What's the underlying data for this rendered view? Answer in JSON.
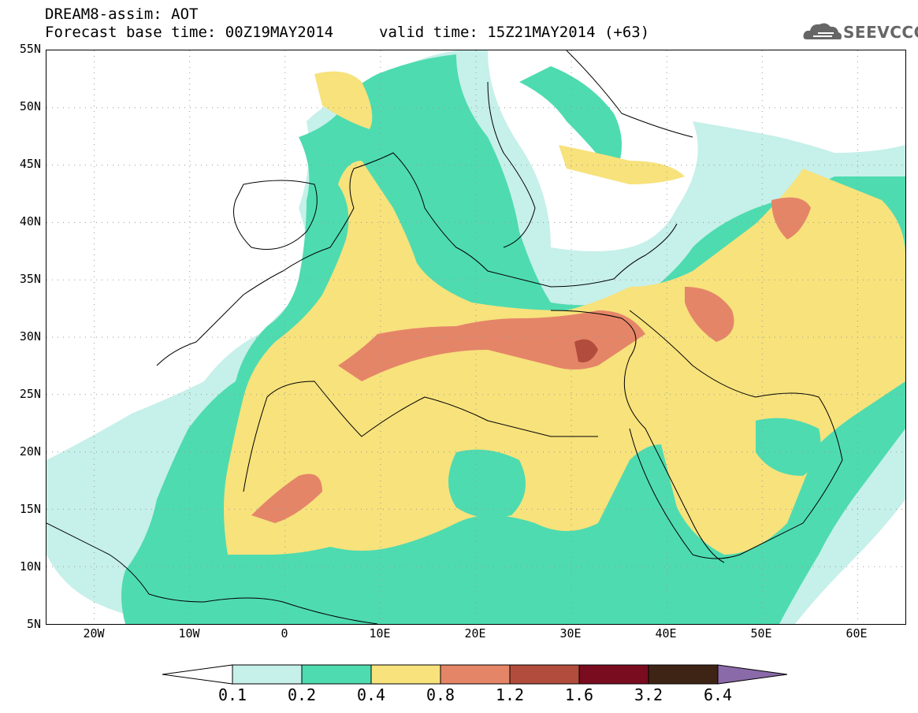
{
  "header": {
    "title_line1": "DREAM8-assim: AOT",
    "title_line2": "Forecast base time: 00Z19MAY2014",
    "valid_time": "valid time: 15Z21MAY2014 (+63)",
    "logo_text": "SEEVCCC"
  },
  "map": {
    "lat_labels": [
      "55N",
      "50N",
      "45N",
      "40N",
      "35N",
      "30N",
      "25N",
      "20N",
      "15N",
      "10N",
      "5N"
    ],
    "lon_labels": [
      "20W",
      "10W",
      "0",
      "10E",
      "20E",
      "30E",
      "40E",
      "50E",
      "60E"
    ],
    "lon_range": [
      -25,
      65
    ],
    "lat_range": [
      5,
      55
    ]
  },
  "colorbar": {
    "labels": [
      "0.1",
      "0.2",
      "0.4",
      "0.8",
      "1.2",
      "1.6",
      "3.2",
      "6.4"
    ],
    "colors": [
      "#ffffff",
      "#c6f0ea",
      "#4edbb0",
      "#f7e27c",
      "#e58568",
      "#b24c3c",
      "#7a0c20",
      "#3d2415",
      "#8a6aa8"
    ]
  }
}
